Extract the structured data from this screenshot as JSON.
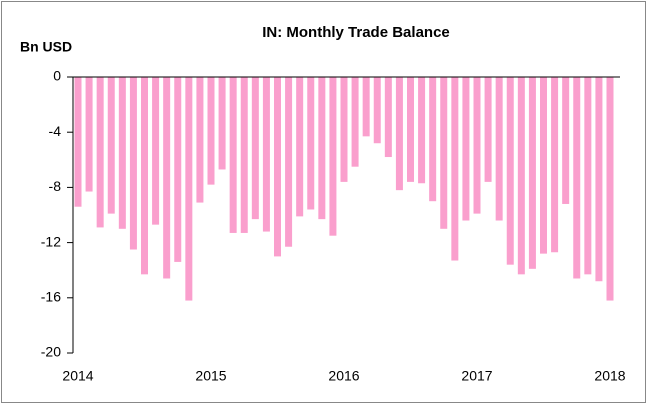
{
  "chart_data": {
    "type": "bar",
    "title": "IN: Monthly Trade Balance",
    "y_label": "Bn USD",
    "categories": [
      "2014",
      null,
      null,
      null,
      null,
      null,
      null,
      null,
      null,
      null,
      null,
      null,
      "2015",
      null,
      null,
      null,
      null,
      null,
      null,
      null,
      null,
      null,
      null,
      null,
      "2016",
      null,
      null,
      null,
      null,
      null,
      null,
      null,
      null,
      null,
      null,
      null,
      "2017",
      null,
      null,
      null,
      null,
      null,
      null,
      null,
      null,
      null,
      null,
      null,
      "2018"
    ],
    "values": [
      -9.4,
      -8.3,
      -10.9,
      -9.9,
      -11.0,
      -12.5,
      -14.3,
      -10.7,
      -14.6,
      -13.4,
      -16.2,
      -9.1,
      -7.8,
      -6.7,
      -11.3,
      -11.3,
      -10.3,
      -11.2,
      -13.0,
      -12.3,
      -10.1,
      -9.6,
      -10.3,
      -11.5,
      -7.6,
      -6.5,
      -4.3,
      -4.8,
      -5.8,
      -8.2,
      -7.6,
      -7.7,
      -9.0,
      -11.0,
      -13.3,
      -10.4,
      -9.9,
      -7.6,
      -10.4,
      -13.6,
      -14.3,
      -13.9,
      -12.8,
      -12.7,
      -9.2,
      -14.6,
      -14.3,
      -14.8,
      -16.2
    ],
    "color": "#fa9fcd",
    "ylim": [
      -20,
      0
    ],
    "yticks": [
      0,
      -4,
      -8,
      -12,
      -16,
      -20
    ]
  }
}
